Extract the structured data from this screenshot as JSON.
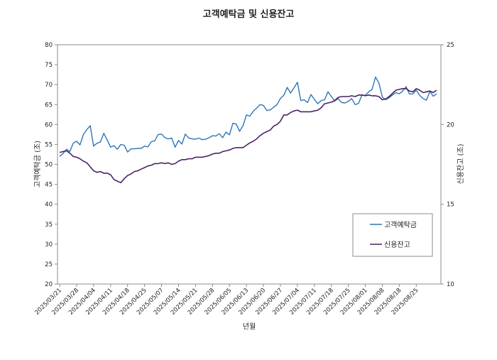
{
  "chart_data": {
    "type": "line",
    "title": "고객예탁금 및 신용잔고",
    "xlabel": "년월",
    "ylabel_left": "고객예탁금 (조)",
    "ylabel_right": "신용잔고 (조)",
    "ylim_left": [
      20,
      80
    ],
    "ylim_right": [
      10,
      25
    ],
    "yticks_left": [
      "20",
      "25",
      "30",
      "35",
      "40",
      "45",
      "50",
      "55",
      "60",
      "65",
      "70",
      "75",
      "80"
    ],
    "yticks_right": [
      "10",
      "15",
      "20",
      "25"
    ],
    "grid": false,
    "legend_position": "inside-right",
    "x_tick_labels": [
      "2025/03/21",
      "2025/03/28",
      "2025/04/04",
      "2025/04/11",
      "2025/04/18",
      "2025/04/25",
      "2025/05/07",
      "2025/05/14",
      "2025/05/21",
      "2025/05/28",
      "2025/06/05",
      "2025/06/13",
      "2025/06/20",
      "2025/06/27",
      "2025/07/04",
      "2025/07/11",
      "2025/07/18",
      "2025/07/25",
      "2025/08/01",
      "2025/08/08",
      "2025/08/18",
      "2025/08/25"
    ],
    "x_tick_positions": [
      0,
      5,
      10,
      15,
      20,
      25,
      30,
      35,
      40,
      45,
      50,
      55,
      60,
      65,
      70,
      75,
      80,
      85,
      90,
      95,
      100,
      105
    ],
    "series": [
      {
        "name": "고객예탁금",
        "axis": "left",
        "color": "#2E75B6",
        "values": [
          52.0,
          52.7,
          53.8,
          53.2,
          55.3,
          55.8,
          54.9,
          57.5,
          58.7,
          59.7,
          54.6,
          55.3,
          55.6,
          57.8,
          56.1,
          54.3,
          54.7,
          53.8,
          55.0,
          54.8,
          53.1,
          53.9,
          53.9,
          54.0,
          54.0,
          54.6,
          54.4,
          55.7,
          55.9,
          57.5,
          57.6,
          56.7,
          56.4,
          56.6,
          54.3,
          56.0,
          55.1,
          57.6,
          56.6,
          56.4,
          56.3,
          56.6,
          56.2,
          56.3,
          56.7,
          57.2,
          57.1,
          57.7,
          56.7,
          58.1,
          57.4,
          60.3,
          60.1,
          58.3,
          59.7,
          62.4,
          62.1,
          63.3,
          64.1,
          65.0,
          64.8,
          63.5,
          63.7,
          64.3,
          65.0,
          66.5,
          67.3,
          69.3,
          67.9,
          69.2,
          70.6,
          66.0,
          66.2,
          65.5,
          67.5,
          66.3,
          65.2,
          66.0,
          66.2,
          68.2,
          67.0,
          65.9,
          66.5,
          65.5,
          65.4,
          65.8,
          66.5,
          65.0,
          65.3,
          67.4,
          67.3,
          68.2,
          68.8,
          71.9,
          70.4,
          66.9,
          66.2,
          66.7,
          67.4,
          68.0,
          67.7,
          68.4,
          69.5,
          67.6,
          67.7,
          68.6,
          67.3,
          66.5,
          66.1,
          68.3,
          67.1,
          67.7
        ]
      },
      {
        "name": "신용잔고",
        "axis": "right",
        "color": "#4B2363",
        "values": [
          18.25,
          18.3,
          18.35,
          18.2,
          18.0,
          17.95,
          17.85,
          17.7,
          17.6,
          17.35,
          17.1,
          17.0,
          17.05,
          16.95,
          16.95,
          16.85,
          16.55,
          16.45,
          16.35,
          16.6,
          16.8,
          16.9,
          17.05,
          17.1,
          17.2,
          17.3,
          17.4,
          17.45,
          17.55,
          17.55,
          17.6,
          17.55,
          17.6,
          17.5,
          17.55,
          17.7,
          17.8,
          17.8,
          17.85,
          17.85,
          17.95,
          17.95,
          17.95,
          18.0,
          18.05,
          18.15,
          18.2,
          18.2,
          18.3,
          18.35,
          18.4,
          18.5,
          18.55,
          18.55,
          18.55,
          18.7,
          18.85,
          18.95,
          19.1,
          19.3,
          19.45,
          19.55,
          19.65,
          19.9,
          20.0,
          20.2,
          20.6,
          20.6,
          20.75,
          20.85,
          20.9,
          20.8,
          20.8,
          20.8,
          20.8,
          20.85,
          20.9,
          21.05,
          21.3,
          21.35,
          21.4,
          21.5,
          21.7,
          21.75,
          21.75,
          21.75,
          21.8,
          21.75,
          21.85,
          21.85,
          21.8,
          21.85,
          21.8,
          21.8,
          21.75,
          21.55,
          21.6,
          21.75,
          21.95,
          22.15,
          22.2,
          22.25,
          22.25,
          22.1,
          22.05,
          22.25,
          22.15,
          22.0,
          22.05,
          22.1,
          22.0,
          22.15
        ]
      }
    ]
  }
}
